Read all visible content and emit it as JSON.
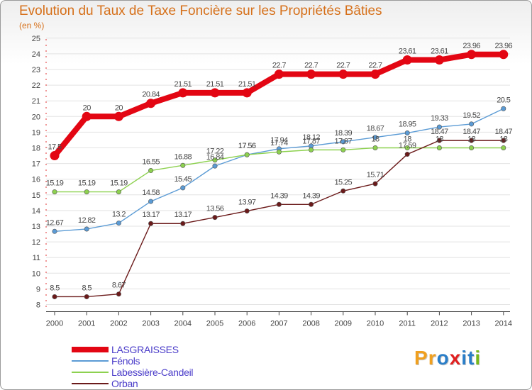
{
  "title": "Evolution du Taux de Taxe Foncière sur les Propriétés Bâties",
  "subtitle": "(en %)",
  "brand": {
    "text": "Proxiti",
    "letters": [
      "P",
      "r",
      "o",
      "x",
      "i",
      "t",
      "i"
    ],
    "colors": [
      "#f0a020",
      "#f0a020",
      "#2a7ec8",
      "#e02020",
      "#2a7ec8",
      "#2a7ec8",
      "#78b81c"
    ]
  },
  "chart_data": {
    "type": "line",
    "title": "Evolution du Taux de Taxe Foncière sur les Propriétés Bâties",
    "ylabel": "(en %)",
    "xlabel": "",
    "x": [
      "2000",
      "2001",
      "2002",
      "2003",
      "2004",
      "2005",
      "2006",
      "2007",
      "2008",
      "2009",
      "2010",
      "2011",
      "2012",
      "2013",
      "2014"
    ],
    "ylim": [
      8,
      25
    ],
    "yticks": [
      "8",
      "9",
      "10",
      "11",
      "12",
      "13",
      "14",
      "15",
      "16",
      "17",
      "18",
      "19",
      "20",
      "21",
      "22",
      "23",
      "24",
      "25"
    ],
    "grid": "horizontal",
    "legend_position": "bottom-left",
    "series": [
      {
        "name": "LASGRAISSES",
        "color": "#e30613",
        "values": [
          17.5,
          20,
          20,
          20.84,
          21.51,
          21.51,
          21.51,
          22.7,
          22.7,
          22.7,
          22.7,
          23.61,
          23.61,
          23.96,
          23.96
        ],
        "labels": [
          "17.5",
          "20",
          "20",
          "20.84",
          "21.51",
          "21.51",
          "21.51",
          "22.7",
          "22.7",
          "22.7",
          "22.7",
          "23.61",
          "23.61",
          "23.96",
          "23.96"
        ]
      },
      {
        "name": "Fénols",
        "color": "#5b9bd5",
        "values": [
          12.67,
          12.82,
          13.2,
          14.58,
          15.45,
          16.84,
          17.56,
          17.94,
          18.12,
          18.39,
          18.67,
          18.95,
          19.33,
          19.52,
          20.5
        ],
        "labels": [
          "12.67",
          "12.82",
          "13.2",
          "14.58",
          "15.45",
          "16.84",
          "17.56",
          "17.94",
          "18.12",
          "18.39",
          "18.67",
          "18.95",
          "19.33",
          "19.52",
          "20.5"
        ]
      },
      {
        "name": "Labessière-Candeil",
        "color": "#8dd14f",
        "values": [
          15.19,
          15.19,
          15.19,
          16.55,
          16.88,
          17.22,
          17.56,
          17.74,
          17.87,
          17.87,
          18,
          18,
          18,
          18,
          18
        ],
        "labels": [
          "15.19",
          "15.19",
          "15.19",
          "16.55",
          "16.88",
          "17.22",
          "17.56",
          "17.74",
          "17.87",
          "17.87",
          "18",
          "18",
          "18",
          "18",
          "18"
        ]
      },
      {
        "name": "Orban",
        "color": "#6b1a1a",
        "values": [
          8.5,
          8.5,
          8.67,
          13.17,
          13.17,
          13.56,
          13.97,
          14.39,
          14.39,
          15.25,
          15.71,
          17.59,
          18.47,
          18.47,
          18.47
        ],
        "labels": [
          "8.5",
          "8.5",
          "8.67",
          "13.17",
          "13.17",
          "13.56",
          "13.97",
          "14.39",
          "14.39",
          "15.25",
          "15.71",
          "17.59",
          "18.47",
          "18.47",
          "18.47"
        ]
      }
    ]
  }
}
